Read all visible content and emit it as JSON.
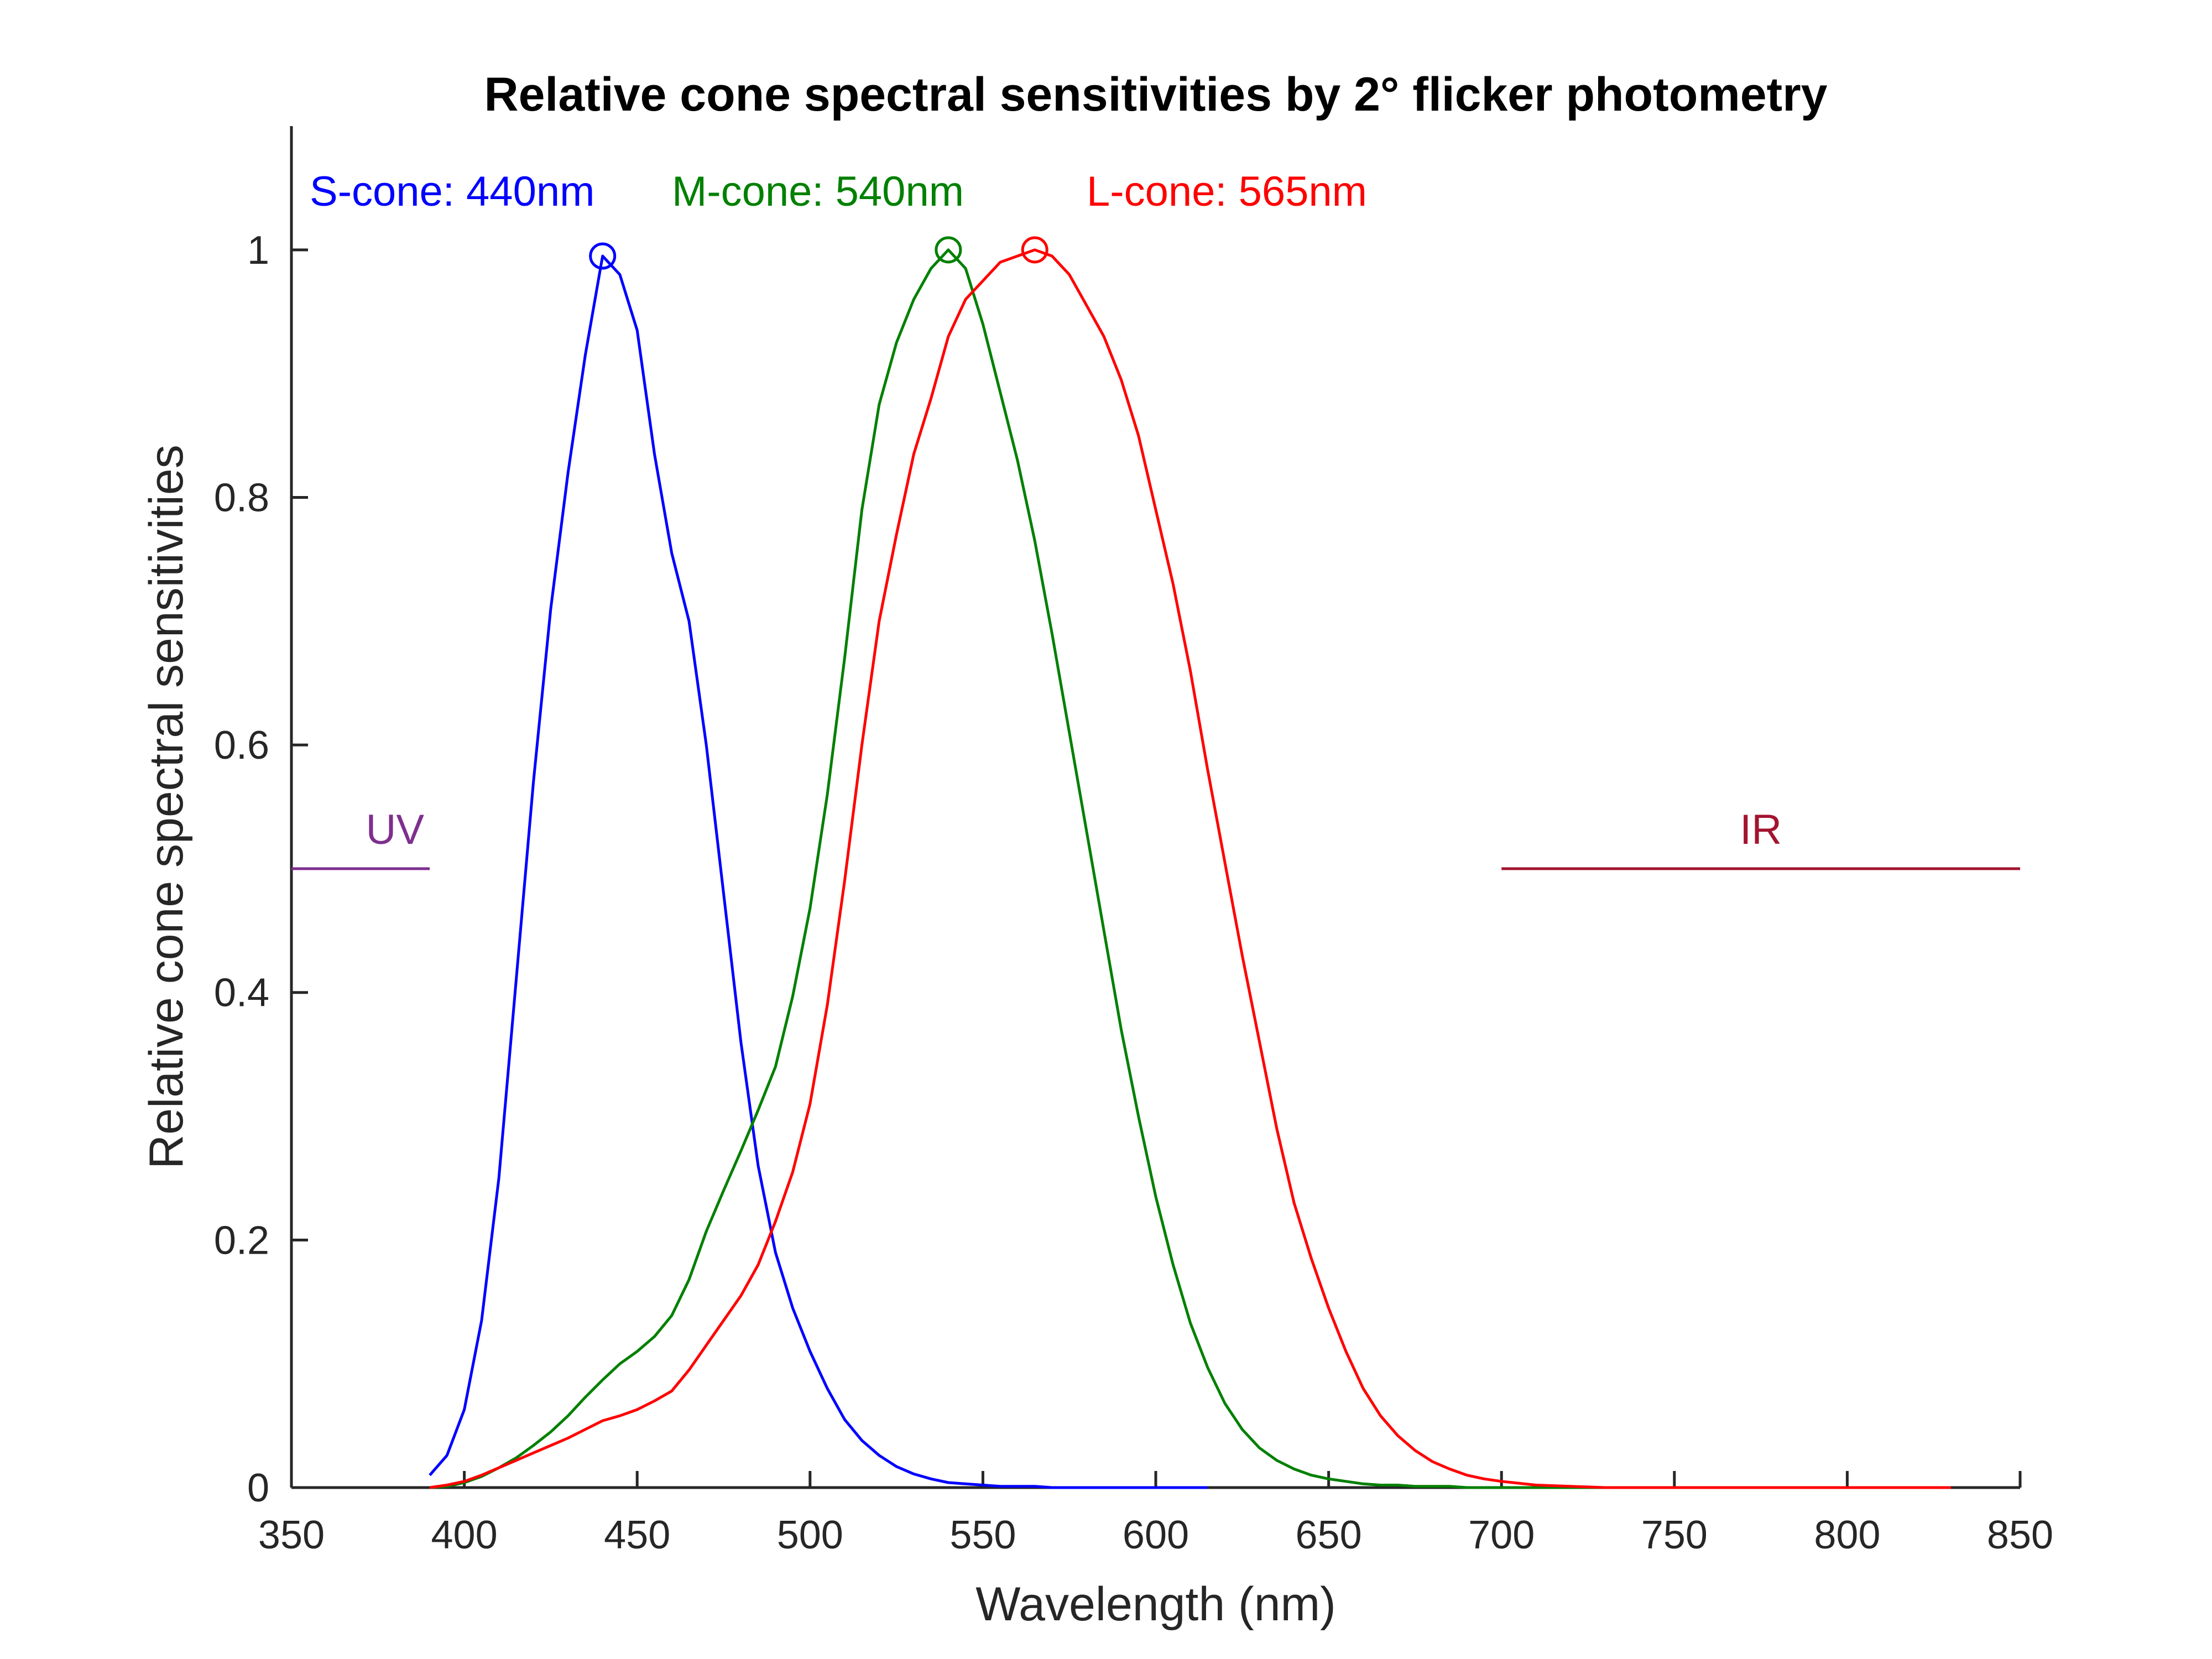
{
  "chart_data": {
    "type": "line",
    "title": "Relative cone spectral sensitivities by 2° flicker photometry",
    "xlabel": "Wavelength (nm)",
    "ylabel": "Relative cone spectral sensitivities",
    "xlim": [
      350,
      850
    ],
    "ylim": [
      0,
      1.1
    ],
    "xticks": [
      350,
      400,
      450,
      500,
      550,
      600,
      650,
      700,
      750,
      800,
      850
    ],
    "yticks": [
      0,
      0.2,
      0.4,
      0.6,
      0.8,
      1
    ],
    "xtick_labels": [
      "350",
      "400",
      "450",
      "500",
      "550",
      "600",
      "650",
      "700",
      "750",
      "800",
      "850"
    ],
    "ytick_labels": [
      "0",
      "0.2",
      "0.4",
      "0.6",
      "0.8",
      "1"
    ],
    "grid": false,
    "series": [
      {
        "label": "S-cone: 440nm",
        "color": "#0000ff",
        "peak": [
          440,
          0.995
        ],
        "x": [
          390,
          395,
          400,
          405,
          410,
          415,
          420,
          425,
          430,
          435,
          440,
          445,
          450,
          455,
          460,
          465,
          470,
          475,
          480,
          485,
          490,
          495,
          500,
          505,
          510,
          515,
          520,
          525,
          530,
          535,
          540,
          545,
          550,
          555,
          560,
          565,
          570,
          575,
          580,
          585,
          590,
          595,
          600,
          605,
          610,
          615
        ],
        "y": [
          0.01,
          0.026,
          0.063,
          0.135,
          0.25,
          0.41,
          0.57,
          0.71,
          0.82,
          0.915,
          0.995,
          0.98,
          0.935,
          0.835,
          0.755,
          0.7,
          0.6,
          0.48,
          0.36,
          0.26,
          0.19,
          0.145,
          0.11,
          0.08,
          0.055,
          0.038,
          0.026,
          0.017,
          0.011,
          0.007,
          0.004,
          0.003,
          0.002,
          0.001,
          0.001,
          0.001,
          0.0,
          0.0,
          0.0,
          0.0,
          0.0,
          0.0,
          0.0,
          0.0,
          0.0,
          0.0
        ]
      },
      {
        "label": "M-cone: 540nm",
        "color": "#008000",
        "peak": [
          540,
          1.0
        ],
        "x": [
          390,
          395,
          400,
          405,
          410,
          415,
          420,
          425,
          430,
          435,
          440,
          445,
          450,
          455,
          460,
          465,
          470,
          475,
          480,
          485,
          490,
          495,
          500,
          505,
          510,
          515,
          520,
          525,
          530,
          535,
          540,
          545,
          550,
          555,
          560,
          565,
          570,
          575,
          580,
          585,
          590,
          595,
          600,
          605,
          610,
          615,
          620,
          625,
          630,
          635,
          640,
          645,
          650,
          655,
          660,
          665,
          670,
          675,
          680,
          685,
          690,
          695,
          700,
          710,
          720,
          730,
          750,
          770,
          800,
          830
        ],
        "y": [
          0.0,
          0.001,
          0.004,
          0.009,
          0.016,
          0.024,
          0.034,
          0.045,
          0.058,
          0.073,
          0.087,
          0.1,
          0.11,
          0.122,
          0.139,
          0.168,
          0.207,
          0.24,
          0.272,
          0.305,
          0.34,
          0.397,
          0.468,
          0.56,
          0.67,
          0.79,
          0.875,
          0.925,
          0.96,
          0.985,
          1.0,
          0.985,
          0.94,
          0.885,
          0.83,
          0.765,
          0.69,
          0.61,
          0.53,
          0.45,
          0.37,
          0.3,
          0.235,
          0.18,
          0.133,
          0.097,
          0.068,
          0.047,
          0.032,
          0.022,
          0.015,
          0.01,
          0.007,
          0.005,
          0.003,
          0.002,
          0.002,
          0.001,
          0.001,
          0.001,
          0.0,
          0.0,
          0.0,
          0.0,
          0.0,
          0.0,
          0.0,
          0.0,
          0.0,
          0.0
        ]
      },
      {
        "label": "L-cone: 565nm",
        "color": "#ff0000",
        "peak": [
          565,
          1.0
        ],
        "x": [
          390,
          395,
          400,
          405,
          410,
          415,
          420,
          425,
          430,
          435,
          440,
          445,
          450,
          455,
          460,
          465,
          470,
          475,
          480,
          485,
          490,
          495,
          500,
          505,
          510,
          515,
          520,
          525,
          530,
          535,
          540,
          545,
          550,
          555,
          560,
          565,
          570,
          575,
          580,
          585,
          590,
          595,
          600,
          605,
          610,
          615,
          620,
          625,
          630,
          635,
          640,
          645,
          650,
          655,
          660,
          665,
          670,
          675,
          680,
          685,
          690,
          695,
          700,
          710,
          720,
          730,
          750,
          770,
          800,
          830
        ],
        "y": [
          0.0,
          0.002,
          0.005,
          0.01,
          0.016,
          0.022,
          0.028,
          0.034,
          0.04,
          0.047,
          0.054,
          0.058,
          0.063,
          0.07,
          0.078,
          0.095,
          0.115,
          0.135,
          0.155,
          0.18,
          0.215,
          0.255,
          0.31,
          0.39,
          0.49,
          0.6,
          0.7,
          0.77,
          0.835,
          0.88,
          0.93,
          0.96,
          0.975,
          0.99,
          0.995,
          1.0,
          0.995,
          0.98,
          0.955,
          0.93,
          0.895,
          0.85,
          0.79,
          0.73,
          0.66,
          0.58,
          0.505,
          0.43,
          0.36,
          0.29,
          0.23,
          0.185,
          0.145,
          0.11,
          0.08,
          0.058,
          0.042,
          0.03,
          0.021,
          0.015,
          0.01,
          0.007,
          0.005,
          0.002,
          0.001,
          0.0,
          0.0,
          0.0,
          0.0,
          0.0
        ]
      }
    ],
    "bands": [
      {
        "label": "UV",
        "color": "#7e2f8e",
        "x": [
          350,
          390
        ],
        "y": 0.5
      },
      {
        "label": "IR",
        "color": "#a2142f",
        "x": [
          700,
          850
        ],
        "y": 0.5
      }
    ]
  }
}
